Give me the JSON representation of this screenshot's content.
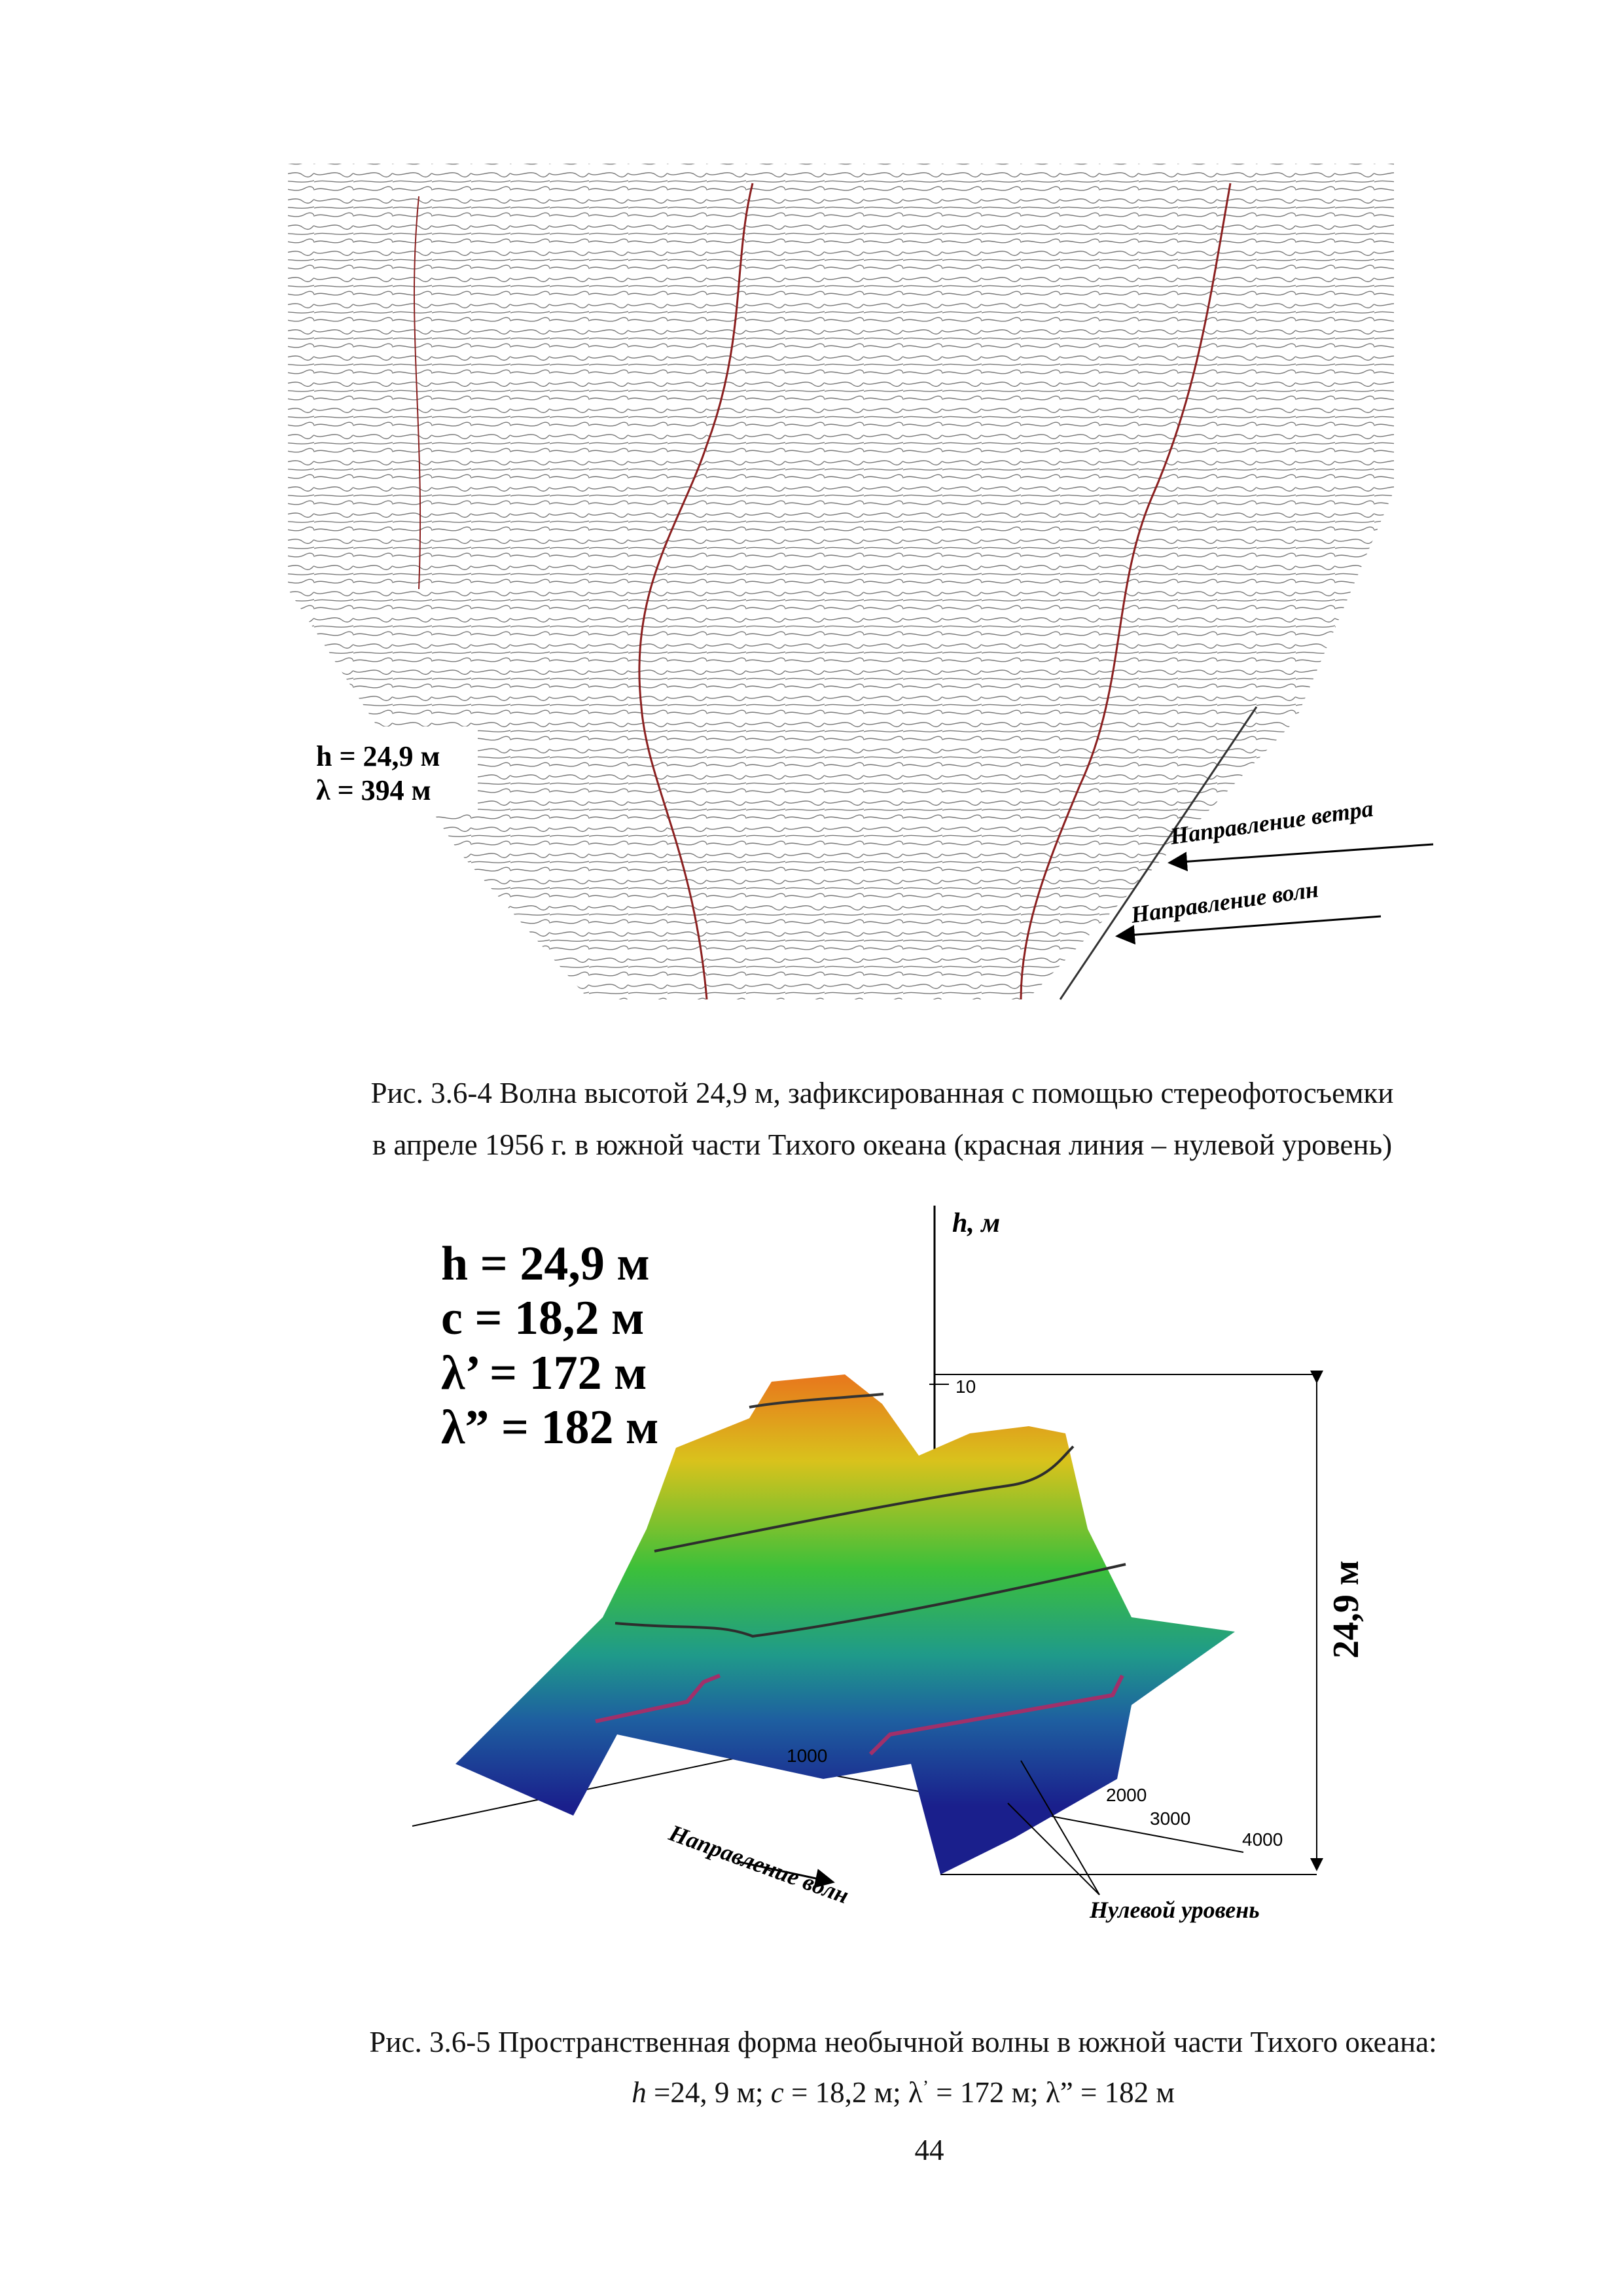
{
  "figure1": {
    "labels": {
      "height": "h = 24,9 м",
      "wavelength": "λ = 394 м",
      "wind_direction": "Направление ветра",
      "wave_direction": "Направление волн"
    },
    "caption": [
      "Рис. 3.6-4 Волна высотой 24,9 м, зафиксированная с помощью стереофотосъемки",
      "в апреле 1956 г. в южной части Тихого океана (красная линия – нулевой уровень)"
    ]
  },
  "figure2": {
    "params": [
      "h = 24,9 м",
      "c = 18,2 м",
      "λ’ = 172 м",
      "λ” = 182 м"
    ],
    "axis_label": "h, м",
    "tick_10": "10",
    "dimension": "24,9 м",
    "distance_ticks": [
      "1000",
      "2000",
      "3000",
      "4000"
    ],
    "wave_direction": "Направление волн",
    "zero_level": "Нулевой уровень",
    "caption": {
      "line1": "Рис. 3.6-5 Пространственная форма необычной волны в южной части Тихого океана:",
      "line2": [
        "h",
        " =24, 9 м; ",
        "c",
        " = 18,2 м; λ",
        "’",
        " = 172 м; λ” = 182 м"
      ]
    }
  },
  "page_number": "44"
}
